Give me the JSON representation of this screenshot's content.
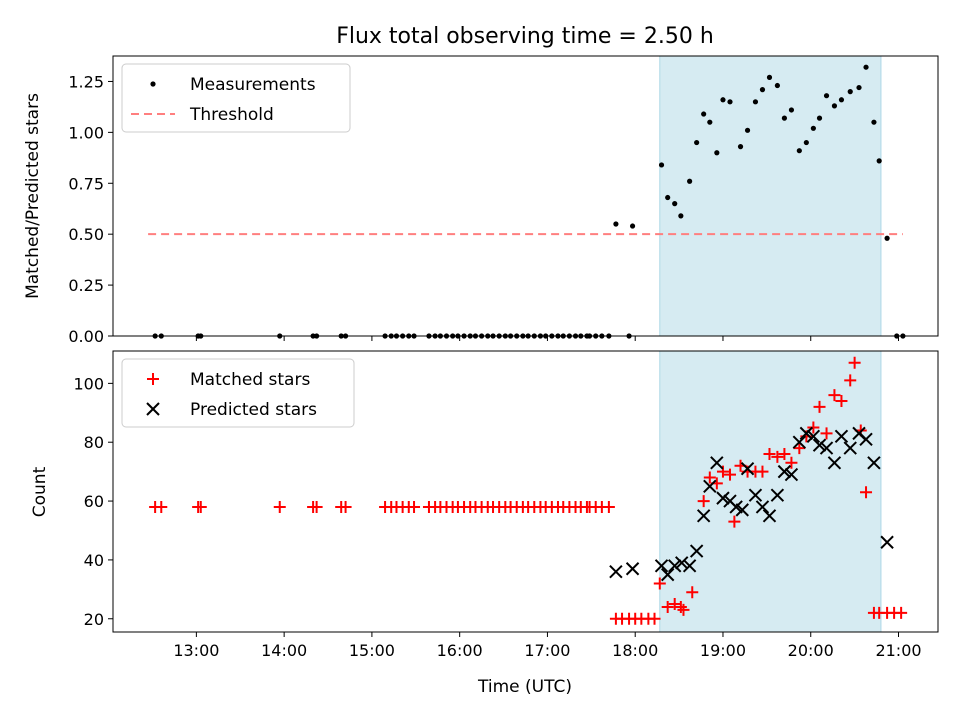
{
  "figure": {
    "title": "Flux total observing time = 2.50 h",
    "shade_color": "#add8e6"
  },
  "chart_data": [
    {
      "type": "scatter",
      "ylabel": "Matched/Predicted stars",
      "ylim": [
        0,
        1.375
      ],
      "xlim": [
        12.05,
        21.45
      ],
      "yticks": [
        0.0,
        0.25,
        0.5,
        0.75,
        1.0,
        1.25
      ],
      "ytick_labels": [
        "0.00",
        "0.25",
        "0.50",
        "0.75",
        "1.00",
        "1.25"
      ],
      "shaded_x_range": [
        18.28,
        20.8
      ],
      "legend_placement": "upper-left",
      "series": [
        {
          "name": "Measurements",
          "marker": "dot",
          "color": "#000000",
          "x": [
            12.53,
            12.6,
            13.02,
            13.05,
            13.95,
            14.33,
            14.37,
            14.65,
            14.7,
            15.15,
            15.22,
            15.28,
            15.35,
            15.42,
            15.48,
            15.65,
            15.72,
            15.78,
            15.85,
            15.92,
            15.98,
            16.05,
            16.12,
            16.18,
            16.25,
            16.32,
            16.38,
            16.45,
            16.52,
            16.58,
            16.65,
            16.72,
            16.78,
            16.85,
            16.92,
            16.98,
            17.05,
            17.12,
            17.18,
            17.25,
            17.32,
            17.38,
            17.45,
            17.48,
            17.55,
            17.62,
            17.7,
            17.78,
            17.93,
            17.97,
            18.3,
            18.37,
            18.45,
            18.52,
            18.62,
            18.7,
            18.78,
            18.85,
            18.93,
            19.0,
            19.08,
            19.2,
            19.28,
            19.37,
            19.45,
            19.53,
            19.62,
            19.7,
            19.78,
            19.87,
            19.95,
            20.03,
            20.1,
            20.18,
            20.27,
            20.35,
            20.45,
            20.55,
            20.63,
            20.72,
            20.78,
            20.87,
            20.98,
            21.05
          ],
          "y": [
            0,
            0,
            0,
            0,
            0,
            0,
            0,
            0,
            0,
            0,
            0,
            0,
            0,
            0,
            0,
            0,
            0,
            0,
            0,
            0,
            0,
            0,
            0,
            0,
            0,
            0,
            0,
            0,
            0,
            0,
            0,
            0,
            0,
            0,
            0,
            0,
            0,
            0,
            0,
            0,
            0,
            0,
            0,
            0,
            0,
            0,
            0,
            0.55,
            0,
            0.54,
            0.84,
            0.68,
            0.65,
            0.59,
            0.76,
            0.95,
            1.09,
            1.05,
            0.9,
            1.16,
            1.15,
            0.93,
            1.01,
            1.15,
            1.21,
            1.27,
            1.23,
            1.07,
            1.11,
            0.91,
            0.95,
            1.02,
            1.07,
            1.18,
            1.13,
            1.16,
            1.2,
            1.22,
            1.32,
            1.05,
            0.86,
            0.48,
            0,
            0
          ]
        },
        {
          "name": "Threshold",
          "style": "dashed",
          "color": "#ff7f7f",
          "x": [
            12.45,
            21.05
          ],
          "y": [
            0.5,
            0.5
          ]
        }
      ]
    },
    {
      "type": "scatter",
      "xlabel": "Time (UTC)",
      "ylabel": "Count",
      "ylim": [
        15.5,
        111
      ],
      "xlim": [
        12.05,
        21.45
      ],
      "yticks": [
        20,
        40,
        60,
        80,
        100
      ],
      "ytick_labels": [
        "20",
        "40",
        "60",
        "80",
        "100"
      ],
      "xticks": [
        13,
        14,
        15,
        16,
        17,
        18,
        19,
        20,
        21
      ],
      "xtick_labels": [
        "13:00",
        "14:00",
        "15:00",
        "16:00",
        "17:00",
        "18:00",
        "19:00",
        "20:00",
        "21:00"
      ],
      "shaded_x_range": [
        18.28,
        20.8
      ],
      "legend_placement": "upper-left",
      "series": [
        {
          "name": "Matched stars",
          "marker": "plus",
          "color": "#ff0000",
          "x": [
            12.53,
            12.6,
            13.02,
            13.05,
            13.95,
            14.33,
            14.37,
            14.65,
            14.7,
            15.15,
            15.22,
            15.28,
            15.35,
            15.42,
            15.48,
            15.65,
            15.72,
            15.78,
            15.85,
            15.92,
            15.98,
            16.05,
            16.12,
            16.18,
            16.25,
            16.32,
            16.38,
            16.45,
            16.52,
            16.58,
            16.65,
            16.72,
            16.78,
            16.85,
            16.92,
            16.98,
            17.05,
            17.12,
            17.18,
            17.25,
            17.32,
            17.38,
            17.45,
            17.48,
            17.55,
            17.62,
            17.7,
            17.78,
            17.85,
            17.93,
            18.0,
            18.07,
            18.15,
            18.22,
            18.28,
            18.37,
            18.45,
            18.52,
            18.55,
            18.65,
            18.78,
            18.85,
            18.93,
            19.0,
            19.08,
            19.13,
            19.2,
            19.28,
            19.37,
            19.45,
            19.53,
            19.62,
            19.7,
            19.78,
            19.87,
            19.95,
            20.03,
            20.1,
            20.18,
            20.27,
            20.35,
            20.45,
            20.5,
            20.57,
            20.63,
            20.72,
            20.78,
            20.87,
            20.95,
            21.03
          ],
          "y": [
            58,
            58,
            58,
            58,
            58,
            58,
            58,
            58,
            58,
            58,
            58,
            58,
            58,
            58,
            58,
            58,
            58,
            58,
            58,
            58,
            58,
            58,
            58,
            58,
            58,
            58,
            58,
            58,
            58,
            58,
            58,
            58,
            58,
            58,
            58,
            58,
            58,
            58,
            58,
            58,
            58,
            58,
            58,
            58,
            58,
            58,
            58,
            20,
            20,
            20,
            20,
            20,
            20,
            20,
            32,
            24,
            25,
            24,
            23,
            29,
            60,
            68,
            66,
            70,
            69,
            53,
            72,
            70,
            70,
            70,
            76,
            75,
            76,
            73,
            78,
            82,
            85,
            92,
            83,
            96,
            94,
            101,
            107,
            84,
            63,
            22,
            22,
            22,
            22,
            22
          ]
        },
        {
          "name": "Predicted stars",
          "marker": "x",
          "color": "#000000",
          "x": [
            17.78,
            17.97,
            18.3,
            18.37,
            18.45,
            18.53,
            18.62,
            18.7,
            18.78,
            18.85,
            18.93,
            19.0,
            19.08,
            19.15,
            19.22,
            19.28,
            19.37,
            19.45,
            19.53,
            19.62,
            19.7,
            19.78,
            19.87,
            19.95,
            20.03,
            20.1,
            20.18,
            20.27,
            20.35,
            20.45,
            20.55,
            20.63,
            20.72,
            20.87
          ],
          "y": [
            36,
            37,
            38,
            35,
            38,
            39,
            38,
            43,
            55,
            65,
            73,
            61,
            60,
            58,
            57,
            71,
            62,
            58,
            55,
            62,
            70,
            69,
            80,
            83,
            82,
            79,
            78,
            73,
            82,
            78,
            83,
            81,
            73,
            46
          ]
        }
      ]
    }
  ]
}
